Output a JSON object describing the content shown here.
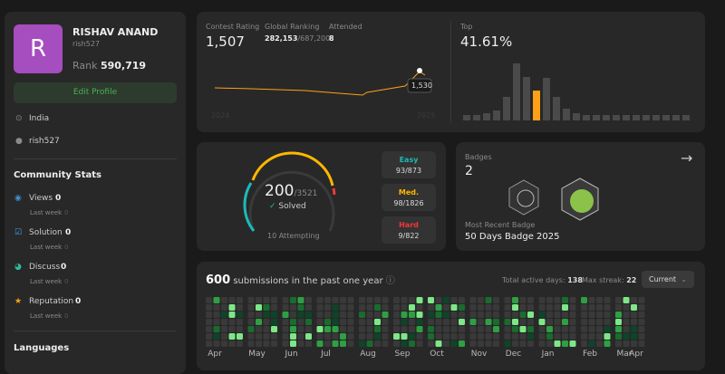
{
  "profile": {
    "avatar": "R",
    "name": "RISHAV ANAND",
    "username": "rish527",
    "rank_label": "Rank",
    "rank": "590,719",
    "edit_button": "Edit Profile",
    "location": "India",
    "github": "rish527"
  },
  "community_stats": {
    "title": "Community Stats",
    "items": [
      {
        "label": "Views",
        "value": "0",
        "sub_label": "Last week",
        "sub_value": "0"
      },
      {
        "label": "Solution",
        "value": "0",
        "sub_label": "Last week",
        "sub_value": "0"
      },
      {
        "label": "Discuss",
        "value": "0",
        "sub_label": "Last week",
        "sub_value": "0"
      },
      {
        "label": "Reputation",
        "value": "0",
        "sub_label": "Last week",
        "sub_value": "0"
      }
    ]
  },
  "languages_title": "Languages",
  "contest": {
    "rating_label": "Contest Rating",
    "rating": "1,507",
    "ranking_label": "Global Ranking",
    "ranking": "282,153",
    "ranking_total": "/687,200",
    "attended_label": "Attended",
    "attended": "8",
    "tooltip": "1,530",
    "axis_start": "2024",
    "axis_end": "2025",
    "top_label": "Top",
    "top": "41.61%"
  },
  "solved": {
    "count": "200",
    "total": "/3521",
    "label": "Solved",
    "attempting": "10 Attempting",
    "levels": [
      {
        "name": "Easy",
        "value": "93/873"
      },
      {
        "name": "Med.",
        "value": "98/1826"
      },
      {
        "name": "Hard",
        "value": "9/822"
      }
    ]
  },
  "badges": {
    "label": "Badges",
    "count": "2",
    "recent_label": "Most Recent Badge",
    "recent": "50 Days Badge 2025"
  },
  "submissions": {
    "count": "600",
    "text": "submissions in the past one year",
    "active_label": "Total active days:",
    "active": "138",
    "streak_label": "Max streak:",
    "streak": "22",
    "dropdown": "Current",
    "months": [
      "Apr",
      "May",
      "Jun",
      "Jul",
      "Aug",
      "Sep",
      "Oct",
      "Nov",
      "Dec",
      "Jan",
      "Feb",
      "Mar",
      "Apr"
    ]
  }
}
